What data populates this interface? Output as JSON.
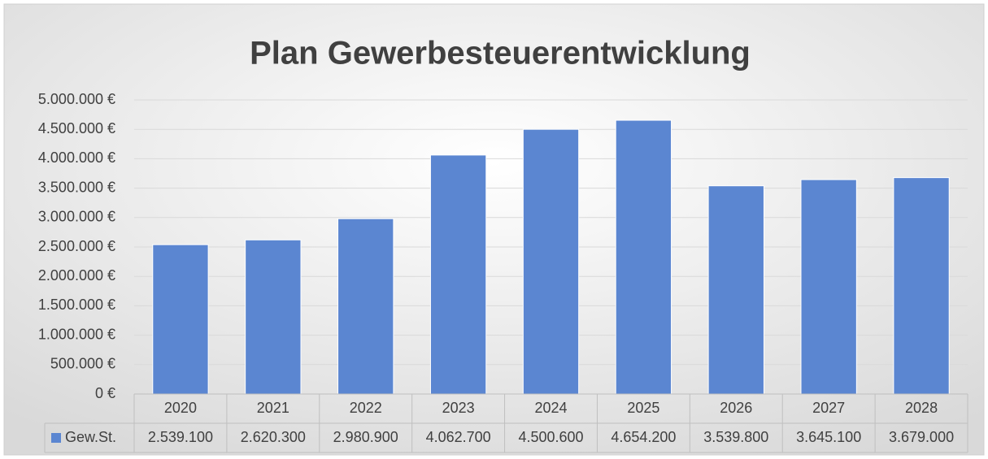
{
  "chart_data": {
    "type": "bar",
    "title": "Plan Gewerbesteuerentwicklung",
    "categories": [
      "2020",
      "2021",
      "2022",
      "2023",
      "2024",
      "2025",
      "2026",
      "2027",
      "2028"
    ],
    "series": [
      {
        "name": "Gew.St.",
        "color": "#5b86d1",
        "values": [
          2539100,
          2620300,
          2980900,
          4062700,
          4500600,
          4654200,
          3539800,
          3645100,
          3679000
        ],
        "value_labels": [
          "2.539.100",
          "2.620.300",
          "2.980.900",
          "4.062.700",
          "4.500.600",
          "4.654.200",
          "3.539.800",
          "3.645.100",
          "3.679.000"
        ]
      }
    ],
    "ylim": [
      0,
      5000000
    ],
    "yticks": [
      {
        "value": 0,
        "label": "0 €"
      },
      {
        "value": 500000,
        "label": "500.000 €"
      },
      {
        "value": 1000000,
        "label": "1.000.000 €"
      },
      {
        "value": 1500000,
        "label": "1.500.000 €"
      },
      {
        "value": 2000000,
        "label": "2.000.000 €"
      },
      {
        "value": 2500000,
        "label": "2.500.000 €"
      },
      {
        "value": 3000000,
        "label": "3.000.000 €"
      },
      {
        "value": 3500000,
        "label": "3.500.000 €"
      },
      {
        "value": 4000000,
        "label": "4.000.000 €"
      },
      {
        "value": 4500000,
        "label": "4.500.000 €"
      },
      {
        "value": 5000000,
        "label": "5.000.000 €"
      }
    ],
    "grid": true,
    "data_table": true
  }
}
